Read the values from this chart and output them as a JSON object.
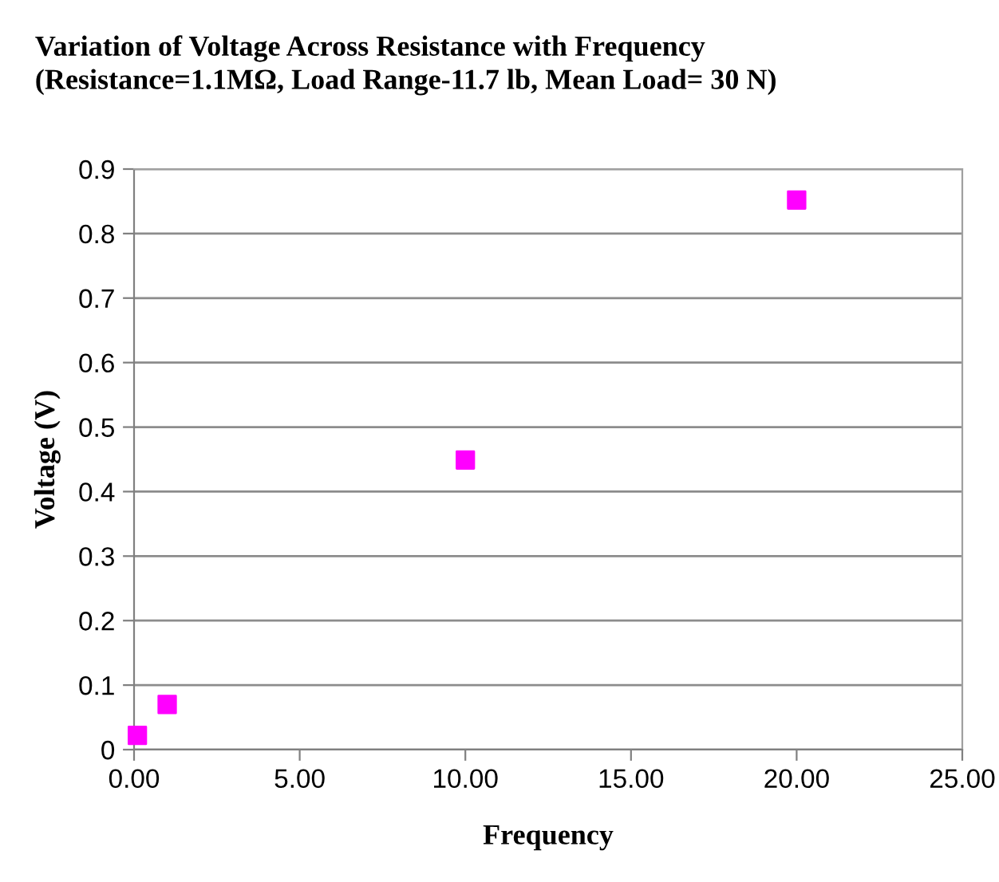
{
  "chart_data": {
    "type": "scatter",
    "title": "Variation of Voltage Across Resistance with Frequency\n(Resistance=1.1MΩ, Load Range-11.7 lb, Mean Load= 30 N)",
    "xlabel": "Frequency",
    "ylabel": "Voltage (V)",
    "x": [
      0.1,
      1,
      10,
      20
    ],
    "values": [
      0.022,
      0.07,
      0.449,
      0.852
    ],
    "color": "#ff00ff",
    "marker": "square",
    "xlim": [
      0,
      25
    ],
    "xticks": [
      {
        "value": 0,
        "label": "0.00"
      },
      {
        "value": 5,
        "label": "5.00"
      },
      {
        "value": 10,
        "label": "10.00"
      },
      {
        "value": 15,
        "label": "15.00"
      },
      {
        "value": 20,
        "label": "20.00"
      },
      {
        "value": 25,
        "label": "25.00"
      }
    ],
    "ylim": [
      0,
      0.9
    ],
    "yticks": [
      {
        "value": 0,
        "label": "0"
      },
      0.1,
      0.2,
      0.3,
      0.4,
      0.5,
      0.6,
      0.7,
      0.8,
      0.9
    ],
    "grid": "y"
  }
}
